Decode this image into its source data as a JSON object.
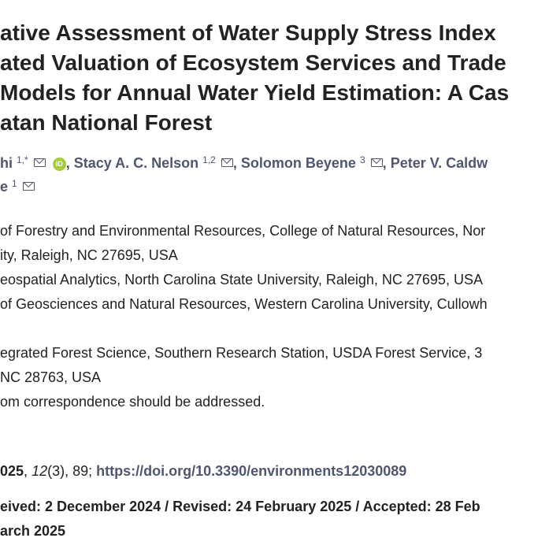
{
  "title": {
    "lines": [
      "ative Assessment of Water Supply Stress Index",
      "ated Valuation of Ecosystem Services and Trade",
      "Models for Annual Water Yield Estimation: A Cas",
      "atan National Forest"
    ]
  },
  "authors": {
    "line1": {
      "a1_name": "hi",
      "a1_sup": "1,*",
      "a2_name": "Stacy A. C. Nelson",
      "a2_sup": "1,2",
      "a3_name": "Solomon Beyene",
      "a3_sup": "3",
      "a4_name": "Peter V. Caldw"
    },
    "line2": {
      "a5_name": "e",
      "a5_sup": "1"
    },
    "separator": ",",
    "orcid_text": "iD"
  },
  "affiliations": [
    {
      "lines": [
        "of Forestry and Environmental Resources, College of Natural Resources, Nor",
        "ity, Raleigh, NC 27695, USA"
      ]
    },
    {
      "lines": [
        "eospatial Analytics, North Carolina State University, Raleigh, NC 27695, USA"
      ]
    },
    {
      "lines": [
        "of Geosciences and Natural Resources, Western Carolina University, Cullowh",
        ""
      ]
    },
    {
      "lines": [
        "egrated Forest Science, Southern Research Station, USDA Forest Service, 3",
        "NC 28763, USA"
      ]
    },
    {
      "lines": [
        "om correspondence should be addressed."
      ]
    }
  ],
  "citation": {
    "year": "025",
    "sep1": ", ",
    "volume": "12",
    "issue": "(3), 89; ",
    "doi": "https://doi.org/10.3390/environments12030089"
  },
  "dates": {
    "line1": "eived: 2 December 2024 / Revised: 24 February 2025 / Accepted: 28 Feb",
    "line2": "arch 2025"
  }
}
